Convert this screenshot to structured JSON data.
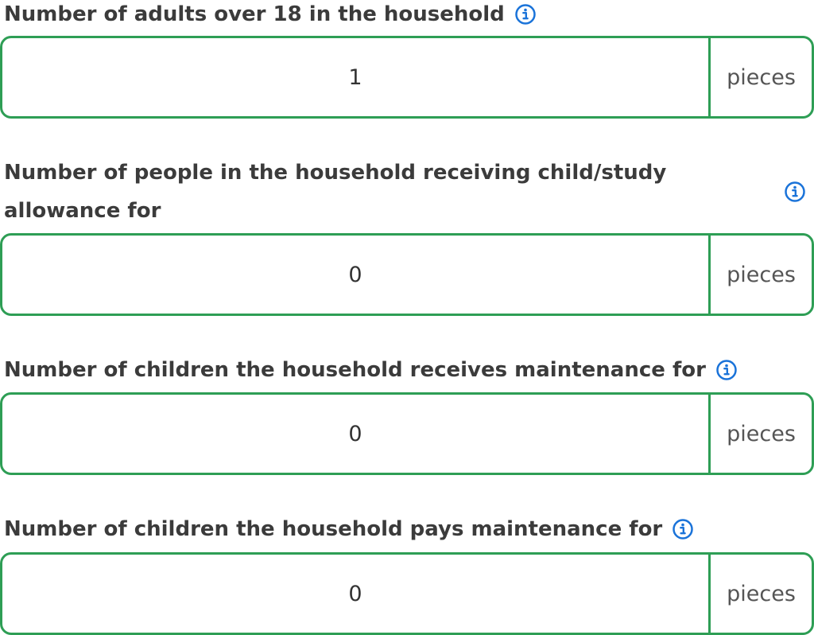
{
  "fields": [
    {
      "label": "Number of adults over 18 in the household",
      "value": "1",
      "unit": "pieces",
      "info_icon": "info-icon"
    },
    {
      "label": "Number of people in the household receiving child/study allowance for",
      "value": "0",
      "unit": "pieces",
      "info_icon": "info-icon"
    },
    {
      "label": "Number of children the household receives maintenance for",
      "value": "0",
      "unit": "pieces",
      "info_icon": "info-icon"
    },
    {
      "label": "Number of children the household pays maintenance for",
      "value": "0",
      "unit": "pieces",
      "info_icon": "info-icon"
    }
  ],
  "colors": {
    "border": "#2e9e55",
    "info_icon": "#1a73d9",
    "label_text": "#3b3b3b"
  }
}
